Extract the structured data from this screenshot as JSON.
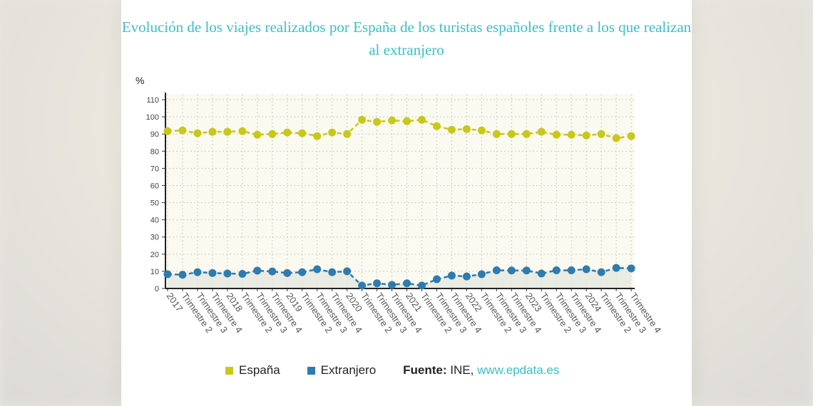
{
  "chart_data": {
    "type": "line",
    "title": "Evolución de los viajes realizados por España de los turistas españoles frente a los que realizan al extranjero",
    "ylabel": "%",
    "xlabel": "",
    "ylim": [
      0,
      110
    ],
    "yticks": [
      0,
      10,
      20,
      30,
      40,
      50,
      60,
      70,
      80,
      90,
      100,
      110
    ],
    "grid": true,
    "legend_position": "bottom",
    "categories": [
      "2017",
      "Trimestre 2",
      "Trimestre 3",
      "Trimestre 4",
      "2018",
      "Trimestre 2",
      "Trimestre 3",
      "Trimestre 4",
      "2019",
      "Trimestre 2",
      "Trimestre 3",
      "Trimestre 4",
      "2020",
      "Trimestre 2",
      "Trimestre 3",
      "Trimestre 4",
      "2021",
      "Trimestre 2",
      "Trimestre 3",
      "Trimestre 4",
      "2022",
      "Trimestre 2",
      "Trimestre 3",
      "Trimestre 4",
      "2023",
      "Trimestre 2",
      "Trimestre 3",
      "Trimestre 4",
      "2024",
      "Trimestre 2",
      "Trimestre 3",
      "Trimestre 4"
    ],
    "series": [
      {
        "name": "España",
        "color": "#c8c81a",
        "values": [
          91.7,
          92.1,
          90.5,
          91.3,
          91.3,
          91.7,
          89.6,
          90.0,
          90.9,
          90.5,
          88.8,
          90.9,
          90.0,
          98.3,
          97.1,
          97.9,
          97.5,
          98.3,
          94.6,
          92.5,
          92.9,
          92.1,
          90.0,
          90.0,
          90.0,
          91.3,
          89.6,
          89.6,
          89.2,
          90.0,
          87.6,
          88.8
        ]
      },
      {
        "name": "Extranjero",
        "color": "#2e7bb0",
        "values": [
          8.3,
          8.0,
          9.5,
          9.0,
          8.7,
          8.5,
          10.4,
          9.9,
          9.0,
          9.5,
          11.2,
          9.5,
          10.0,
          1.7,
          3.0,
          2.1,
          3.0,
          1.7,
          5.4,
          7.5,
          7.0,
          8.3,
          10.6,
          10.5,
          10.5,
          8.7,
          10.6,
          10.6,
          11.2,
          9.5,
          12.0,
          11.7
        ]
      }
    ]
  },
  "source": {
    "label": "Fuente:",
    "text": "INE,",
    "link": "www.epdata.es"
  }
}
